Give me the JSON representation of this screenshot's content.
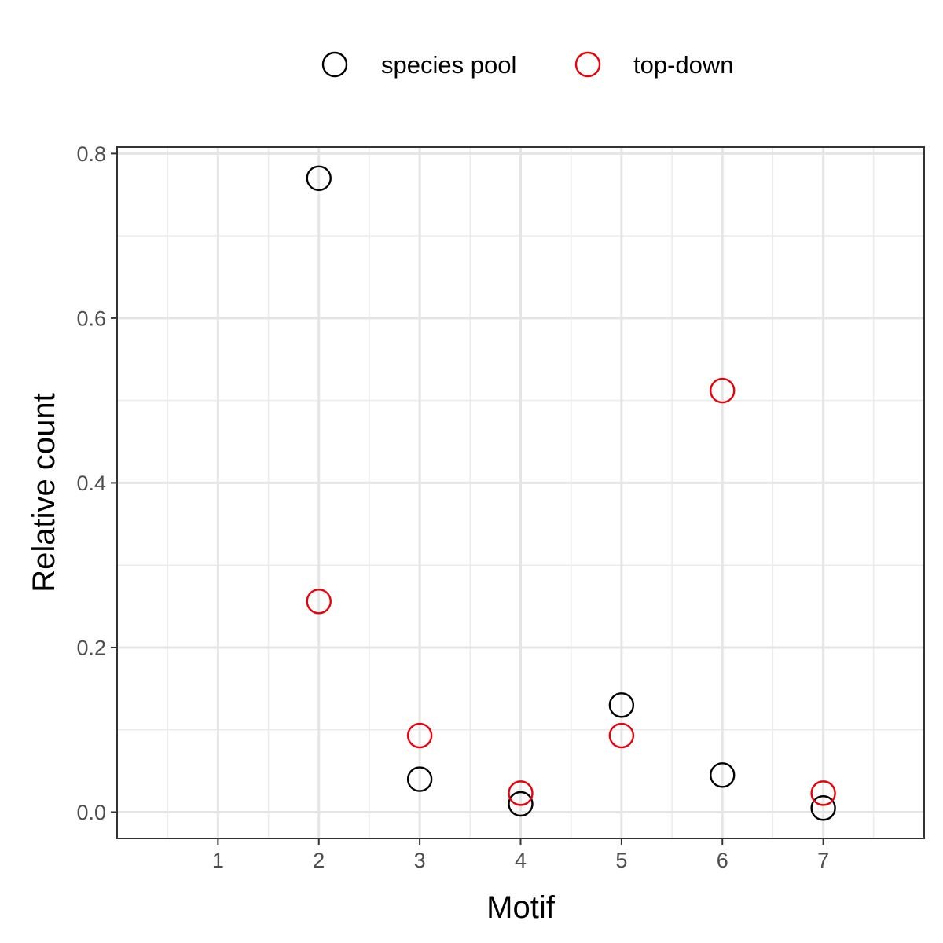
{
  "chart_data": {
    "type": "scatter",
    "title": "",
    "xlabel": "Motif",
    "ylabel": "Relative count",
    "x_ticks": [
      1,
      2,
      3,
      4,
      5,
      6,
      7
    ],
    "x_tick_labels": [
      "1",
      "2",
      "3",
      "4",
      "5",
      "6",
      "7"
    ],
    "y_ticks": [
      0.0,
      0.2,
      0.4,
      0.6,
      0.8
    ],
    "y_tick_labels": [
      "0.0",
      "0.2",
      "0.4",
      "0.6",
      "0.8"
    ],
    "xlim": [
      0.0,
      8.0
    ],
    "ylim": [
      -0.032,
      0.808
    ],
    "grid": true,
    "marker": "open-circle",
    "legend": {
      "position": "top",
      "entries": [
        "species pool",
        "top-down"
      ]
    },
    "series": [
      {
        "name": "species pool",
        "color": "#000000",
        "points": [
          {
            "x": 2,
            "y": 0.77
          },
          {
            "x": 3,
            "y": 0.04
          },
          {
            "x": 4,
            "y": 0.01
          },
          {
            "x": 5,
            "y": 0.13
          },
          {
            "x": 6,
            "y": 0.045
          },
          {
            "x": 7,
            "y": 0.005
          }
        ]
      },
      {
        "name": "top-down",
        "color": "#e8000b",
        "points": [
          {
            "x": 2,
            "y": 0.256
          },
          {
            "x": 3,
            "y": 0.093
          },
          {
            "x": 4,
            "y": 0.023
          },
          {
            "x": 5,
            "y": 0.093
          },
          {
            "x": 6,
            "y": 0.512
          },
          {
            "x": 7,
            "y": 0.023
          }
        ]
      }
    ]
  }
}
